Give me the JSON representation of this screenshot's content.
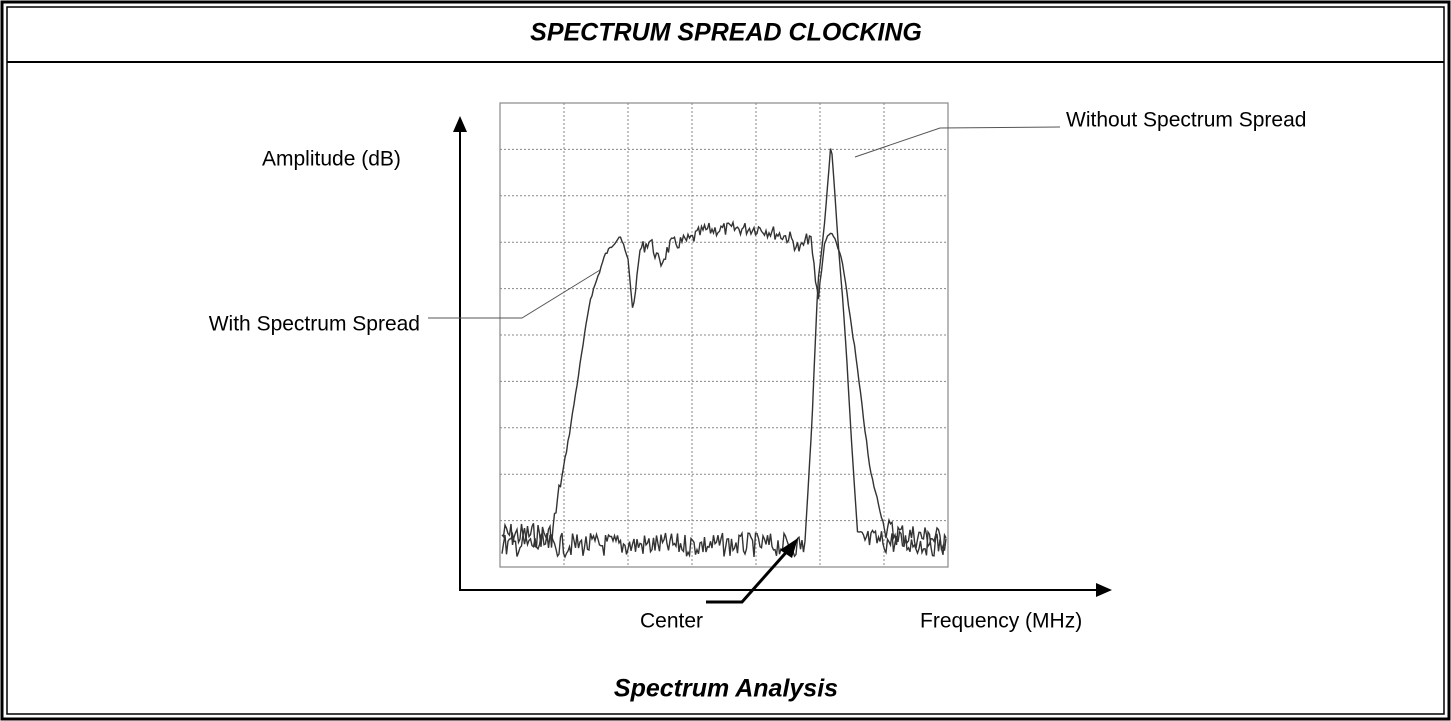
{
  "header": {
    "title": "SPECTRUM SPREAD CLOCKING"
  },
  "diagram": {
    "y_axis_label": "Amplitude (dB)",
    "x_axis_label": "Frequency (MHz)",
    "annotations": [
      "Without Spectrum Spread",
      "With Spectrum Spread",
      "Center"
    ],
    "caption": "Spectrum Analysis"
  }
}
